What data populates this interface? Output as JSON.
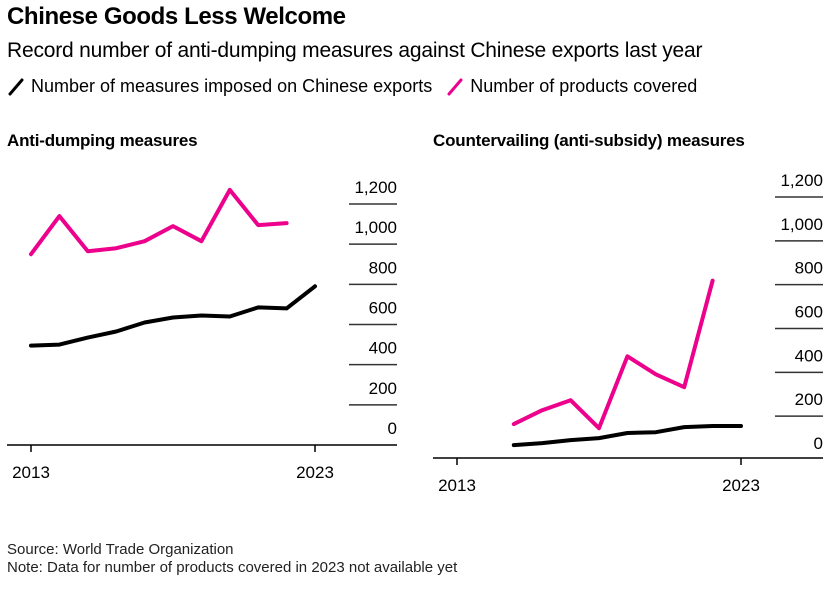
{
  "header": {
    "title": "Chinese Goods Less Welcome",
    "subtitle": "Record number of anti-dumping measures against Chinese exports last year"
  },
  "legend": [
    {
      "label": "Number of measures imposed on Chinese exports",
      "color": "#000000"
    },
    {
      "label": "Number of products covered",
      "color": "#ec008c"
    }
  ],
  "colors": {
    "measures": "#000000",
    "products": "#ec008c",
    "axis": "#000000",
    "grid": "#333333"
  },
  "chart_data": [
    {
      "type": "line",
      "title": "Anti-dumping measures",
      "xlabel": "",
      "ylabel": "",
      "x_ticks": [
        "2013",
        "2023"
      ],
      "x_range": [
        2013,
        2023
      ],
      "ylim": [
        0,
        1200
      ],
      "y_ticks": [
        "0",
        "200",
        "400",
        "600",
        "800",
        "1,000",
        "1,200"
      ],
      "y_tick_values": [
        0,
        200,
        400,
        600,
        800,
        1000,
        1200
      ],
      "y_axis_side": "right",
      "grid": false,
      "series": [
        {
          "name": "Number of measures imposed on Chinese exports",
          "key": "measures",
          "x": [
            2013,
            2014,
            2015,
            2016,
            2017,
            2018,
            2019,
            2020,
            2021,
            2022,
            2023
          ],
          "values": [
            495,
            500,
            535,
            565,
            610,
            635,
            645,
            640,
            685,
            680,
            790
          ]
        },
        {
          "name": "Number of products covered",
          "key": "products",
          "x": [
            2013,
            2014,
            2015,
            2016,
            2017,
            2018,
            2019,
            2020,
            2021,
            2022
          ],
          "values": [
            950,
            1140,
            965,
            980,
            1015,
            1090,
            1015,
            1270,
            1095,
            1105
          ]
        }
      ]
    },
    {
      "type": "line",
      "title": "Countervailing (anti-subsidy) measures",
      "xlabel": "",
      "ylabel": "",
      "x_ticks": [
        "2013",
        "2023"
      ],
      "x_range": [
        2013,
        2023
      ],
      "ylim": [
        0,
        1200
      ],
      "y_ticks": [
        "0",
        "200",
        "400",
        "600",
        "800",
        "1,000",
        "1,200"
      ],
      "y_tick_values": [
        0,
        200,
        400,
        600,
        800,
        1000,
        1200
      ],
      "y_axis_side": "right",
      "grid": false,
      "series": [
        {
          "name": "Number of measures imposed on Chinese exports",
          "key": "measures",
          "x": [
            2015,
            2016,
            2017,
            2018,
            2019,
            2020,
            2021,
            2022,
            2023
          ],
          "values": [
            68,
            77,
            91,
            100,
            123,
            127,
            150,
            155,
            155
          ]
        },
        {
          "name": "Number of products covered",
          "key": "products",
          "x": [
            2015,
            2016,
            2017,
            2018,
            2019,
            2020,
            2021,
            2022
          ],
          "values": [
            164,
            227,
            273,
            145,
            473,
            391,
            332,
            818
          ]
        }
      ]
    }
  ],
  "footer": {
    "source": "Source: World Trade Organization",
    "note": "Note: Data for number of products covered in 2023 not available yet"
  }
}
